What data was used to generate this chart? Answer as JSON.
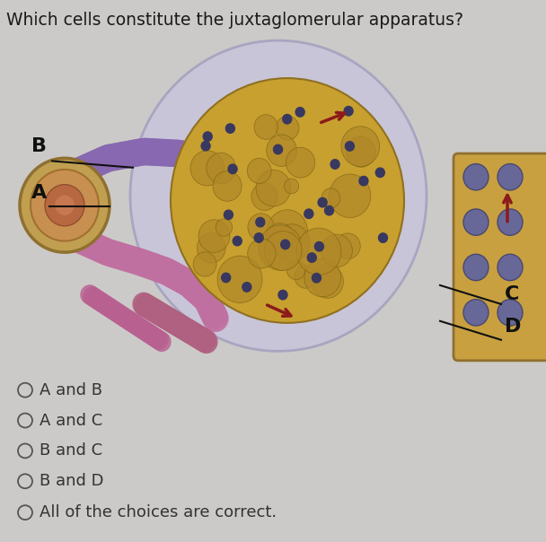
{
  "title": "Which cells constitute the juxtaglomerular apparatus?",
  "title_fontsize": 13.5,
  "title_color": "#1a1a1a",
  "background_color": "#cccac8",
  "choices": [
    "A and B",
    "A and C",
    "B and C",
    "B and D",
    "All of the choices are correct."
  ],
  "choice_fontsize": 13,
  "choice_color": "#333333",
  "radio_color": "#555555",
  "label_fontsize": 16,
  "label_color": "#111111",
  "img_bg": "#c8c6c4",
  "glom_outer_color": "#c0bdd4",
  "glom_outer_edge": "#a0a0bc",
  "glom_inner_color": "#d4c8e0",
  "tuft_color": "#c8a030",
  "tuft_edge": "#907020",
  "vessel_purple": "#8868a8",
  "vessel_pink": "#c870a0",
  "vessel_mauve": "#b06888",
  "tubule_outer": "#c0a050",
  "tubule_inner": "#c07040",
  "tubule_lumen": "#d09060",
  "right_tube": "#c8a040",
  "dot_color": "#484870",
  "arrow_dark_red": "#8b1a1a",
  "line_color": "#111111"
}
